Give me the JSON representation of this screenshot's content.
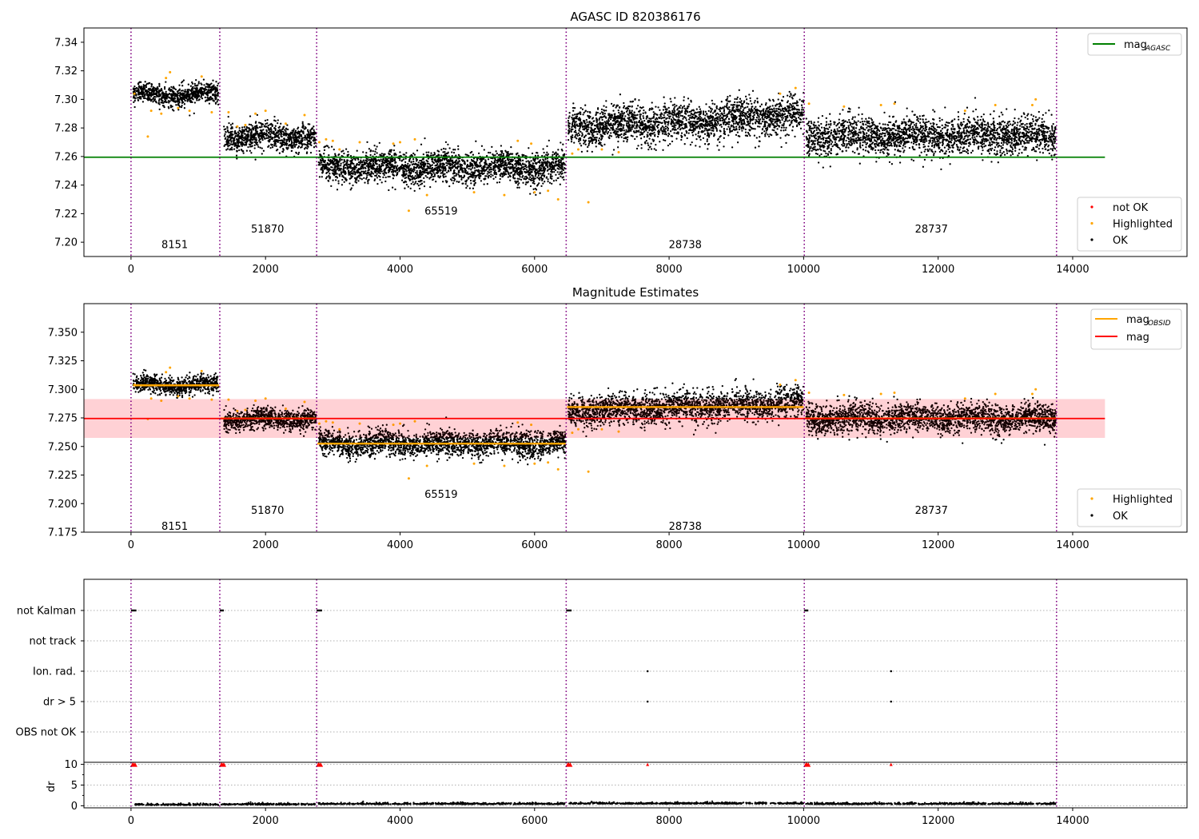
{
  "figure": {
    "background": "#ffffff"
  },
  "chart_data": [
    {
      "id": "p1",
      "type": "scatter",
      "title": "AGASC ID 820386176",
      "xlabel": "",
      "ylabel": "",
      "xlim": [
        -700,
        15700
      ],
      "ylim": [
        7.19,
        7.35
      ],
      "xticks": [
        0,
        2000,
        4000,
        6000,
        8000,
        10000,
        12000,
        14000
      ],
      "xtick_labels": [
        "0",
        "2000",
        "4000",
        "6000",
        "8000",
        "10000",
        "12000",
        "14000"
      ],
      "yticks": [
        7.2,
        7.22,
        7.24,
        7.26,
        7.28,
        7.3,
        7.32,
        7.34
      ],
      "ytick_labels": [
        "7.20",
        "7.22",
        "7.24",
        "7.26",
        "7.28",
        "7.30",
        "7.32",
        "7.34"
      ],
      "obsid_boundaries": [
        0,
        1320,
        2760,
        6470,
        10010,
        13760
      ],
      "obsid_labels": [
        {
          "text": "8151",
          "x": 650,
          "y": 7.198
        },
        {
          "text": "51870",
          "x": 2030,
          "y": 7.209
        },
        {
          "text": "65519",
          "x": 4610,
          "y": 7.2215
        },
        {
          "text": "28738",
          "x": 8240,
          "y": 7.198
        },
        {
          "text": "28737",
          "x": 11900,
          "y": 7.209
        }
      ],
      "segments": [
        {
          "x0": 30,
          "x1": 1300,
          "mean": 7.3035,
          "spread": 0.0035
        },
        {
          "x0": 1380,
          "x1": 2750,
          "mean": 7.274,
          "spread": 0.0045
        },
        {
          "x0": 2790,
          "x1": 6460,
          "mean": 7.2525,
          "spread": 0.0055
        },
        {
          "x0": 6500,
          "x1": 10000,
          "mean": 7.2845,
          "spread": 0.0065
        },
        {
          "x0": 10040,
          "x1": 13750,
          "mean": 7.2745,
          "spread": 0.0065
        }
      ],
      "highlighted_points": [
        [
          50,
          7.304
        ],
        [
          250,
          7.274
        ],
        [
          300,
          7.292
        ],
        [
          450,
          7.29
        ],
        [
          520,
          7.315
        ],
        [
          580,
          7.319
        ],
        [
          700,
          7.294
        ],
        [
          870,
          7.292
        ],
        [
          1050,
          7.316
        ],
        [
          1200,
          7.291
        ],
        [
          1450,
          7.291
        ],
        [
          1580,
          7.281
        ],
        [
          1700,
          7.282
        ],
        [
          1850,
          7.29
        ],
        [
          2000,
          7.292
        ],
        [
          2300,
          7.283
        ],
        [
          2580,
          7.289
        ],
        [
          2800,
          7.27
        ],
        [
          2900,
          7.272
        ],
        [
          3000,
          7.271
        ],
        [
          3100,
          7.265
        ],
        [
          3400,
          7.27
        ],
        [
          3900,
          7.269
        ],
        [
          4000,
          7.27
        ],
        [
          4130,
          7.222
        ],
        [
          4220,
          7.272
        ],
        [
          4400,
          7.233
        ],
        [
          5100,
          7.235
        ],
        [
          5550,
          7.233
        ],
        [
          5750,
          7.271
        ],
        [
          5950,
          7.269
        ],
        [
          6000,
          7.235
        ],
        [
          6200,
          7.236
        ],
        [
          6350,
          7.23
        ],
        [
          6560,
          7.262
        ],
        [
          6650,
          7.265
        ],
        [
          6800,
          7.228
        ],
        [
          7000,
          7.265
        ],
        [
          7250,
          7.263
        ],
        [
          9650,
          7.304
        ],
        [
          9880,
          7.308
        ],
        [
          10080,
          7.297
        ],
        [
          10600,
          7.295
        ],
        [
          11150,
          7.296
        ],
        [
          11350,
          7.297
        ],
        [
          12400,
          7.292
        ],
        [
          12850,
          7.296
        ],
        [
          13400,
          7.296
        ],
        [
          13450,
          7.3
        ]
      ],
      "lines": [
        {
          "name": "mag_AGASC",
          "y": 7.2595,
          "x0": -700,
          "x1": 14480,
          "color": "#008000"
        }
      ],
      "legends": [
        {
          "position": "upper-right",
          "entries": [
            {
              "label": "mag",
              "sub": "AGASC",
              "kind": "line",
              "color": "#008000"
            }
          ]
        },
        {
          "position": "lower-right",
          "entries": [
            {
              "label": "not OK",
              "kind": "dot",
              "color": "#ff0000"
            },
            {
              "label": "Highlighted",
              "kind": "dot",
              "color": "#ffa500"
            },
            {
              "label": "OK",
              "kind": "dot",
              "color": "#000000"
            }
          ]
        }
      ]
    },
    {
      "id": "p2",
      "type": "scatter",
      "title": "Magnitude Estimates",
      "xlabel": "",
      "ylabel": "",
      "xlim": [
        -700,
        15700
      ],
      "ylim": [
        7.175,
        7.375
      ],
      "xticks": [
        0,
        2000,
        4000,
        6000,
        8000,
        10000,
        12000,
        14000
      ],
      "xtick_labels": [
        "0",
        "2000",
        "4000",
        "6000",
        "8000",
        "10000",
        "12000",
        "14000"
      ],
      "yticks": [
        7.175,
        7.2,
        7.225,
        7.25,
        7.275,
        7.3,
        7.325,
        7.35
      ],
      "ytick_labels": [
        "7.175",
        "7.200",
        "7.225",
        "7.250",
        "7.275",
        "7.300",
        "7.325",
        "7.350"
      ],
      "obsid_boundaries": [
        0,
        1320,
        2760,
        6470,
        10010,
        13760
      ],
      "obsid_labels": [
        {
          "text": "8151",
          "x": 650,
          "y": 7.18
        },
        {
          "text": "51870",
          "x": 2030,
          "y": 7.194
        },
        {
          "text": "65519",
          "x": 4610,
          "y": 7.208
        },
        {
          "text": "28738",
          "x": 8240,
          "y": 7.18
        },
        {
          "text": "28737",
          "x": 11900,
          "y": 7.194
        }
      ],
      "segments": [
        {
          "x0": 30,
          "x1": 1300,
          "mean": 7.3035,
          "spread": 0.0035
        },
        {
          "x0": 1380,
          "x1": 2750,
          "mean": 7.274,
          "spread": 0.0045
        },
        {
          "x0": 2790,
          "x1": 6460,
          "mean": 7.2525,
          "spread": 0.0055
        },
        {
          "x0": 6500,
          "x1": 10000,
          "mean": 7.2845,
          "spread": 0.0065
        },
        {
          "x0": 10040,
          "x1": 13750,
          "mean": 7.2745,
          "spread": 0.0065
        }
      ],
      "highlighted_points": [
        [
          50,
          7.304
        ],
        [
          250,
          7.274
        ],
        [
          300,
          7.292
        ],
        [
          450,
          7.29
        ],
        [
          520,
          7.315
        ],
        [
          580,
          7.319
        ],
        [
          700,
          7.294
        ],
        [
          870,
          7.292
        ],
        [
          1050,
          7.316
        ],
        [
          1200,
          7.291
        ],
        [
          1450,
          7.291
        ],
        [
          1580,
          7.281
        ],
        [
          1700,
          7.282
        ],
        [
          1850,
          7.29
        ],
        [
          2000,
          7.292
        ],
        [
          2300,
          7.283
        ],
        [
          2580,
          7.289
        ],
        [
          2800,
          7.27
        ],
        [
          2900,
          7.272
        ],
        [
          3000,
          7.271
        ],
        [
          3100,
          7.265
        ],
        [
          3400,
          7.27
        ],
        [
          3900,
          7.269
        ],
        [
          4000,
          7.27
        ],
        [
          4130,
          7.222
        ],
        [
          4220,
          7.272
        ],
        [
          4400,
          7.233
        ],
        [
          5100,
          7.235
        ],
        [
          5550,
          7.233
        ],
        [
          5750,
          7.271
        ],
        [
          5950,
          7.269
        ],
        [
          6000,
          7.235
        ],
        [
          6200,
          7.236
        ],
        [
          6350,
          7.23
        ],
        [
          6560,
          7.262
        ],
        [
          6650,
          7.265
        ],
        [
          6800,
          7.228
        ],
        [
          7000,
          7.265
        ],
        [
          7250,
          7.263
        ],
        [
          9650,
          7.304
        ],
        [
          9880,
          7.308
        ],
        [
          10080,
          7.297
        ],
        [
          10600,
          7.295
        ],
        [
          11150,
          7.296
        ],
        [
          11350,
          7.297
        ],
        [
          12400,
          7.292
        ],
        [
          12850,
          7.296
        ],
        [
          13400,
          7.296
        ],
        [
          13450,
          7.3
        ]
      ],
      "obsid_mag_lines": [
        {
          "x0": 30,
          "x1": 1310,
          "y": 7.3035
        },
        {
          "x0": 1330,
          "x1": 2750,
          "y": 7.2745
        },
        {
          "x0": 2770,
          "x1": 6460,
          "y": 7.2525
        },
        {
          "x0": 6480,
          "x1": 10000,
          "y": 7.2845
        },
        {
          "x0": 10020,
          "x1": 13750,
          "y": 7.2745
        }
      ],
      "mag_line": {
        "y": 7.2745,
        "x0": -700,
        "x1": 14480,
        "color": "#ff0000"
      },
      "mag_band": {
        "y0": 7.2575,
        "y1": 7.2915,
        "color": "#ffc0cb"
      },
      "legends": [
        {
          "position": "upper-right",
          "entries": [
            {
              "label": "mag",
              "sub": "OBSID",
              "kind": "line",
              "color": "#ffa500"
            },
            {
              "label": "mag",
              "sub": "",
              "kind": "line",
              "color": "#ff0000"
            }
          ]
        },
        {
          "position": "lower-right",
          "entries": [
            {
              "label": "Highlighted",
              "kind": "dot",
              "color": "#ffa500"
            },
            {
              "label": "OK",
              "kind": "dot",
              "color": "#000000"
            }
          ]
        }
      ]
    },
    {
      "id": "p3",
      "type": "scatter",
      "title": "",
      "xlabel": "",
      "ylabel": "",
      "xlim": [
        -700,
        15700
      ],
      "categories": [
        "not Kalman",
        "not track",
        "Ion. rad.",
        "dr > 5",
        "OBS not OK"
      ],
      "obsid_boundaries": [
        0,
        1320,
        2760,
        6470,
        10010,
        13760
      ],
      "flag_points": {
        "not Kalman": [
          [
            0,
            80
          ],
          [
            1320,
            60
          ],
          [
            2760,
            80
          ],
          [
            6470,
            80
          ],
          [
            10010,
            60
          ]
        ],
        "not track": [],
        "Ion. rad.": [
          [
            7680,
            0
          ],
          [
            11300,
            0
          ]
        ],
        "dr > 5": [
          [
            7680,
            0
          ],
          [
            11300,
            0
          ]
        ],
        "OBS not OK": []
      },
      "grid": true
    },
    {
      "id": "p4",
      "type": "scatter",
      "title": "",
      "xlabel": "",
      "ylabel": "dr",
      "xlim": [
        -700,
        15700
      ],
      "ylim": [
        -0.5,
        10.5
      ],
      "xticks": [
        0,
        2000,
        4000,
        6000,
        8000,
        10000,
        12000,
        14000
      ],
      "xtick_labels": [
        "0",
        "2000",
        "4000",
        "6000",
        "8000",
        "10000",
        "12000",
        "14000"
      ],
      "yticks": [
        0,
        5,
        10
      ],
      "ytick_labels": [
        "0",
        "5",
        "10"
      ],
      "obsid_boundaries": [
        0,
        1320,
        2760,
        6470,
        10010,
        13760
      ],
      "red_clusters": [
        [
          0,
          80
        ],
        [
          1320,
          80
        ],
        [
          2760,
          80
        ],
        [
          6470,
          80
        ],
        [
          10010,
          80
        ],
        [
          7680,
          0
        ],
        [
          11300,
          0
        ]
      ],
      "segments_dr": [
        {
          "x0": 60,
          "x1": 1300,
          "mean": 0.15
        },
        {
          "x0": 1340,
          "x1": 2740,
          "mean": 0.25
        },
        {
          "x0": 2780,
          "x1": 6460,
          "mean": 0.35
        },
        {
          "x0": 6490,
          "x1": 10000,
          "mean": 0.45
        },
        {
          "x0": 10030,
          "x1": 13750,
          "mean": 0.35
        }
      ],
      "grid": true
    }
  ]
}
